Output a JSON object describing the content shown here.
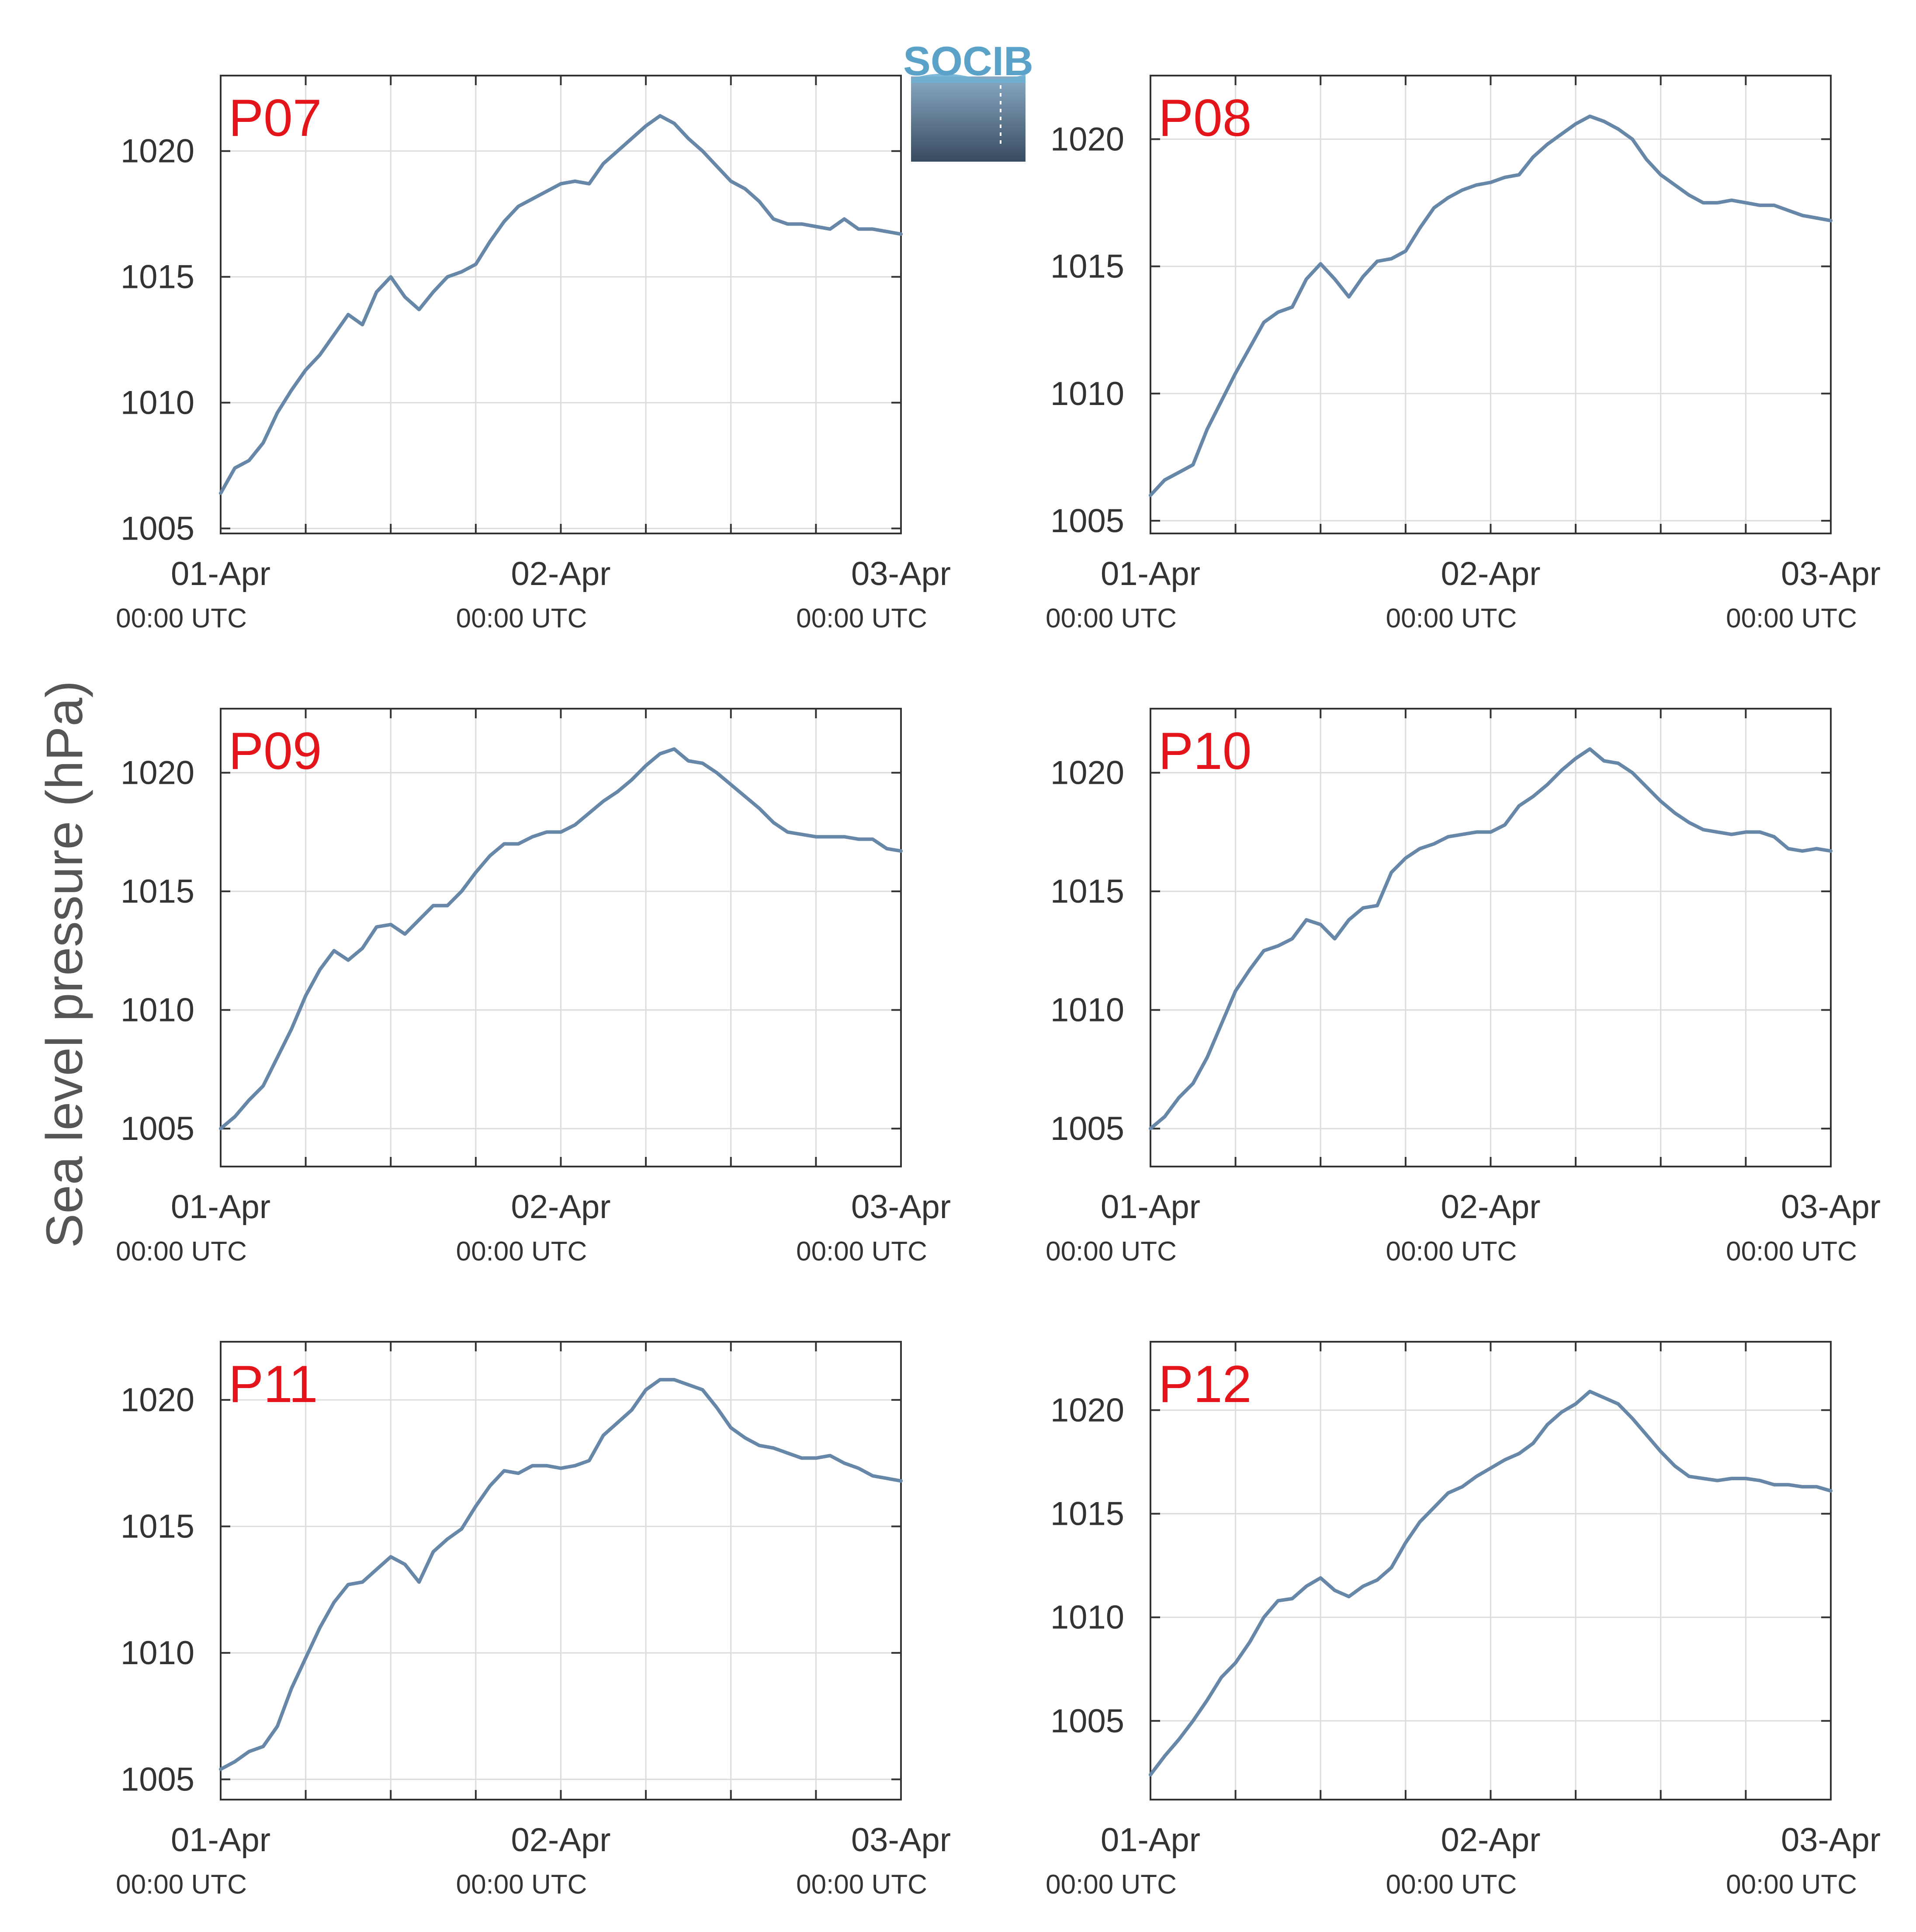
{
  "figure": {
    "ylabel": "Sea level pressure (hPa)",
    "logo_text": "SOCIB",
    "colors": {
      "line": "#6787a8",
      "panel_title": "#e4141b",
      "grid": "#dcdcdc",
      "axes": "#333333",
      "logo_top": "#5aa2c8",
      "logo_bottom": "#384b60"
    }
  },
  "chart_data": [
    {
      "type": "line",
      "title": "P07",
      "xlabel": "",
      "ylabel": "Sea level pressure (hPa)",
      "x_ticks": [
        {
          "date": "01-Apr",
          "time": "00:00 UTC"
        },
        {
          "date": "02-Apr",
          "time": "00:00 UTC"
        },
        {
          "date": "03-Apr",
          "time": "00:00 UTC"
        }
      ],
      "xlim_hours": [
        0,
        48
      ],
      "ylim": [
        1004.8,
        1023
      ],
      "y_ticks": [
        1005,
        1010,
        1015,
        1020
      ],
      "grid": true,
      "series": [
        {
          "x_hours": [
            0,
            1,
            2,
            3,
            4,
            5,
            6,
            7,
            8,
            9,
            10,
            11,
            12,
            13,
            14,
            15,
            16,
            17,
            18,
            19,
            20,
            21,
            22,
            23,
            24,
            25,
            26,
            27,
            28,
            29,
            30,
            31,
            32,
            33,
            34,
            35,
            36,
            37,
            38,
            39,
            40,
            41,
            42,
            43,
            44,
            45,
            46,
            47,
            48
          ],
          "values": [
            1006.4,
            1007.4,
            1007.7,
            1008.4,
            1009.6,
            1010.5,
            1011.3,
            1011.9,
            1012.7,
            1013.5,
            1013.1,
            1014.4,
            1015.0,
            1014.2,
            1013.7,
            1014.4,
            1015.0,
            1015.2,
            1015.5,
            1016.4,
            1017.2,
            1017.8,
            1018.1,
            1018.4,
            1018.7,
            1018.8,
            1018.7,
            1019.5,
            1020.0,
            1020.5,
            1021.0,
            1021.4,
            1021.1,
            1020.5,
            1020.0,
            1019.4,
            1018.8,
            1018.5,
            1018.0,
            1017.3,
            1017.1,
            1017.1,
            1017.0,
            1016.9,
            1017.3,
            1016.9,
            1016.9,
            1016.8,
            1016.7
          ]
        }
      ]
    },
    {
      "type": "line",
      "title": "P08",
      "xlabel": "",
      "ylabel": "Sea level pressure (hPa)",
      "x_ticks": [
        {
          "date": "01-Apr",
          "time": "00:00 UTC"
        },
        {
          "date": "02-Apr",
          "time": "00:00 UTC"
        },
        {
          "date": "03-Apr",
          "time": "00:00 UTC"
        }
      ],
      "xlim_hours": [
        0,
        48
      ],
      "ylim": [
        1004.5,
        1022.5
      ],
      "y_ticks": [
        1005,
        1010,
        1015,
        1020
      ],
      "grid": true,
      "series": [
        {
          "x_hours": [
            0,
            1,
            2,
            3,
            4,
            5,
            6,
            7,
            8,
            9,
            10,
            11,
            12,
            13,
            14,
            15,
            16,
            17,
            18,
            19,
            20,
            21,
            22,
            23,
            24,
            25,
            26,
            27,
            28,
            29,
            30,
            31,
            32,
            33,
            34,
            35,
            36,
            37,
            38,
            39,
            40,
            41,
            42,
            43,
            44,
            45,
            46,
            47,
            48
          ],
          "values": [
            1006.0,
            1006.6,
            1006.9,
            1007.2,
            1008.6,
            1009.7,
            1010.8,
            1011.8,
            1012.8,
            1013.2,
            1013.4,
            1014.5,
            1015.1,
            1014.5,
            1013.8,
            1014.6,
            1015.2,
            1015.3,
            1015.6,
            1016.5,
            1017.3,
            1017.7,
            1018.0,
            1018.2,
            1018.3,
            1018.5,
            1018.6,
            1019.3,
            1019.8,
            1020.2,
            1020.6,
            1020.9,
            1020.7,
            1020.4,
            1020.0,
            1019.2,
            1018.6,
            1018.2,
            1017.8,
            1017.5,
            1017.5,
            1017.6,
            1017.5,
            1017.4,
            1017.4,
            1017.2,
            1017.0,
            1016.9,
            1016.8
          ]
        }
      ]
    },
    {
      "type": "line",
      "title": "P09",
      "xlabel": "",
      "ylabel": "Sea level pressure (hPa)",
      "x_ticks": [
        {
          "date": "01-Apr",
          "time": "00:00 UTC"
        },
        {
          "date": "02-Apr",
          "time": "00:00 UTC"
        },
        {
          "date": "03-Apr",
          "time": "00:00 UTC"
        }
      ],
      "xlim_hours": [
        0,
        48
      ],
      "ylim": [
        1003.4,
        1022.7
      ],
      "y_ticks": [
        1005,
        1010,
        1015,
        1020
      ],
      "grid": true,
      "series": [
        {
          "x_hours": [
            0,
            1,
            2,
            3,
            4,
            5,
            6,
            7,
            8,
            9,
            10,
            11,
            12,
            13,
            14,
            15,
            16,
            17,
            18,
            19,
            20,
            21,
            22,
            23,
            24,
            25,
            26,
            27,
            28,
            29,
            30,
            31,
            32,
            33,
            34,
            35,
            36,
            37,
            38,
            39,
            40,
            41,
            42,
            43,
            44,
            45,
            46,
            47,
            48
          ],
          "values": [
            1005.0,
            1005.5,
            1006.2,
            1006.8,
            1008.0,
            1009.2,
            1010.6,
            1011.7,
            1012.5,
            1012.1,
            1012.6,
            1013.5,
            1013.6,
            1013.2,
            1013.8,
            1014.4,
            1014.4,
            1015.0,
            1015.8,
            1016.5,
            1017.0,
            1017.0,
            1017.3,
            1017.5,
            1017.5,
            1017.8,
            1018.3,
            1018.8,
            1019.2,
            1019.7,
            1020.3,
            1020.8,
            1021.0,
            1020.5,
            1020.4,
            1020.0,
            1019.5,
            1019.0,
            1018.5,
            1017.9,
            1017.5,
            1017.4,
            1017.3,
            1017.3,
            1017.3,
            1017.2,
            1017.2,
            1016.8,
            1016.7
          ]
        }
      ]
    },
    {
      "type": "line",
      "title": "P10",
      "xlabel": "",
      "ylabel": "Sea level pressure (hPa)",
      "x_ticks": [
        {
          "date": "01-Apr",
          "time": "00:00 UTC"
        },
        {
          "date": "02-Apr",
          "time": "00:00 UTC"
        },
        {
          "date": "03-Apr",
          "time": "00:00 UTC"
        }
      ],
      "xlim_hours": [
        0,
        48
      ],
      "ylim": [
        1003.4,
        1022.7
      ],
      "y_ticks": [
        1005,
        1010,
        1015,
        1020
      ],
      "grid": true,
      "series": [
        {
          "x_hours": [
            0,
            1,
            2,
            3,
            4,
            5,
            6,
            7,
            8,
            9,
            10,
            11,
            12,
            13,
            14,
            15,
            16,
            17,
            18,
            19,
            20,
            21,
            22,
            23,
            24,
            25,
            26,
            27,
            28,
            29,
            30,
            31,
            32,
            33,
            34,
            35,
            36,
            37,
            38,
            39,
            40,
            41,
            42,
            43,
            44,
            45,
            46,
            47,
            48
          ],
          "values": [
            1005.0,
            1005.5,
            1006.3,
            1006.9,
            1008.0,
            1009.4,
            1010.8,
            1011.7,
            1012.5,
            1012.7,
            1013.0,
            1013.8,
            1013.6,
            1013.0,
            1013.8,
            1014.3,
            1014.4,
            1015.8,
            1016.4,
            1016.8,
            1017.0,
            1017.3,
            1017.4,
            1017.5,
            1017.5,
            1017.8,
            1018.6,
            1019.0,
            1019.5,
            1020.1,
            1020.6,
            1021.0,
            1020.5,
            1020.4,
            1020.0,
            1019.4,
            1018.8,
            1018.3,
            1017.9,
            1017.6,
            1017.5,
            1017.4,
            1017.5,
            1017.5,
            1017.3,
            1016.8,
            1016.7,
            1016.8,
            1016.7
          ]
        }
      ]
    },
    {
      "type": "line",
      "title": "P11",
      "xlabel": "",
      "ylabel": "Sea level pressure (hPa)",
      "x_ticks": [
        {
          "date": "01-Apr",
          "time": "00:00 UTC"
        },
        {
          "date": "02-Apr",
          "time": "00:00 UTC"
        },
        {
          "date": "03-Apr",
          "time": "00:00 UTC"
        }
      ],
      "xlim_hours": [
        0,
        48
      ],
      "ylim": [
        1004.2,
        1022.3
      ],
      "y_ticks": [
        1005,
        1010,
        1015,
        1020
      ],
      "grid": true,
      "series": [
        {
          "x_hours": [
            0,
            1,
            2,
            3,
            4,
            5,
            6,
            7,
            8,
            9,
            10,
            11,
            12,
            13,
            14,
            15,
            16,
            17,
            18,
            19,
            20,
            21,
            22,
            23,
            24,
            25,
            26,
            27,
            28,
            29,
            30,
            31,
            32,
            33,
            34,
            35,
            36,
            37,
            38,
            39,
            40,
            41,
            42,
            43,
            44,
            45,
            46,
            47,
            48
          ],
          "values": [
            1005.4,
            1005.7,
            1006.1,
            1006.3,
            1007.1,
            1008.6,
            1009.8,
            1011.0,
            1012.0,
            1012.7,
            1012.8,
            1013.3,
            1013.8,
            1013.5,
            1012.8,
            1014.0,
            1014.5,
            1014.9,
            1015.8,
            1016.6,
            1017.2,
            1017.1,
            1017.4,
            1017.4,
            1017.3,
            1017.4,
            1017.6,
            1018.6,
            1019.1,
            1019.6,
            1020.4,
            1020.8,
            1020.8,
            1020.6,
            1020.4,
            1019.7,
            1018.9,
            1018.5,
            1018.2,
            1018.1,
            1017.9,
            1017.7,
            1017.7,
            1017.8,
            1017.5,
            1017.3,
            1017.0,
            1016.9,
            1016.8
          ]
        }
      ]
    },
    {
      "type": "line",
      "title": "P12",
      "xlabel": "",
      "ylabel": "Sea level pressure (hPa)",
      "x_ticks": [
        {
          "date": "01-Apr",
          "time": "00:00 UTC"
        },
        {
          "date": "02-Apr",
          "time": "00:00 UTC"
        },
        {
          "date": "03-Apr",
          "time": "00:00 UTC"
        }
      ],
      "xlim_hours": [
        0,
        48
      ],
      "ylim": [
        1001.2,
        1023.3
      ],
      "y_ticks": [
        1005,
        1010,
        1015,
        1020
      ],
      "grid": true,
      "series": [
        {
          "x_hours": [
            0,
            1,
            2,
            3,
            4,
            5,
            6,
            7,
            8,
            9,
            10,
            11,
            12,
            13,
            14,
            15,
            16,
            17,
            18,
            19,
            20,
            21,
            22,
            23,
            24,
            25,
            26,
            27,
            28,
            29,
            30,
            31,
            32,
            33,
            34,
            35,
            36,
            37,
            38,
            39,
            40,
            41,
            42,
            43,
            44,
            45,
            46,
            47,
            48
          ],
          "values": [
            1002.4,
            1003.3,
            1004.1,
            1005.0,
            1006.0,
            1007.1,
            1007.8,
            1008.8,
            1010.0,
            1010.8,
            1010.9,
            1011.5,
            1011.9,
            1011.3,
            1011.0,
            1011.5,
            1011.8,
            1012.4,
            1013.6,
            1014.6,
            1015.3,
            1016.0,
            1016.3,
            1016.8,
            1017.2,
            1017.6,
            1017.9,
            1018.4,
            1019.3,
            1019.9,
            1020.3,
            1020.9,
            1020.6,
            1020.3,
            1019.6,
            1018.8,
            1018.0,
            1017.3,
            1016.8,
            1016.7,
            1016.6,
            1016.7,
            1016.7,
            1016.6,
            1016.4,
            1016.4,
            1016.3,
            1016.3,
            1016.1
          ]
        }
      ]
    }
  ]
}
